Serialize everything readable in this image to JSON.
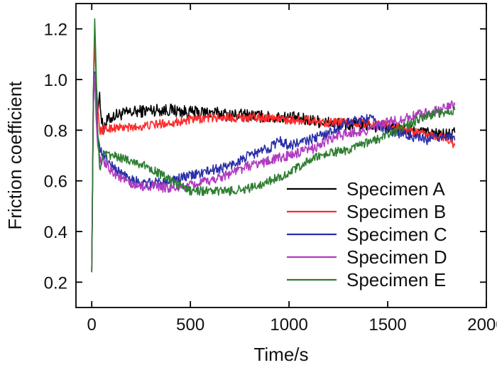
{
  "chart_data": {
    "type": "line",
    "title": "",
    "xlabel": "Time/s",
    "ylabel": "Friction coefficient",
    "xlim": [
      -80,
      2000
    ],
    "ylim": [
      0.1,
      1.3
    ],
    "xticks": [
      0,
      500,
      1000,
      1500,
      2000
    ],
    "yticks": [
      0.2,
      0.4,
      0.6,
      0.8,
      1.0,
      1.2
    ],
    "xtick_labels": [
      "0",
      "500",
      "1000",
      "1500",
      "2000"
    ],
    "ytick_labels": [
      "0.2",
      "0.4",
      "0.6",
      "0.8",
      "1.0",
      "1.2"
    ],
    "grid": false,
    "legend_position": "lower-right",
    "series": [
      {
        "name": "Specimen A",
        "color": "#000000",
        "noise": 0.025,
        "x": [
          0,
          8,
          15,
          22,
          30,
          40,
          50,
          60,
          80,
          120,
          200,
          300,
          400,
          500,
          600,
          700,
          800,
          900,
          1000,
          1100,
          1200,
          1300,
          1400,
          1500,
          1600,
          1700,
          1800,
          1840
        ],
        "y": [
          0.24,
          0.9,
          1.02,
          0.93,
          0.86,
          0.95,
          0.83,
          0.81,
          0.84,
          0.86,
          0.87,
          0.88,
          0.88,
          0.87,
          0.87,
          0.86,
          0.86,
          0.85,
          0.85,
          0.84,
          0.83,
          0.82,
          0.82,
          0.81,
          0.8,
          0.79,
          0.78,
          0.79
        ]
      },
      {
        "name": "Specimen B",
        "color": "#ff2a2a",
        "noise": 0.018,
        "x": [
          0,
          8,
          15,
          22,
          30,
          40,
          60,
          100,
          200,
          300,
          400,
          500,
          600,
          700,
          800,
          900,
          1000,
          1100,
          1200,
          1300,
          1400,
          1500,
          1600,
          1700,
          1800,
          1840
        ],
        "y": [
          0.24,
          0.95,
          1.15,
          1.0,
          0.9,
          0.8,
          0.8,
          0.81,
          0.81,
          0.82,
          0.83,
          0.84,
          0.85,
          0.85,
          0.85,
          0.85,
          0.84,
          0.84,
          0.83,
          0.83,
          0.83,
          0.82,
          0.8,
          0.78,
          0.77,
          0.74
        ]
      },
      {
        "name": "Specimen C",
        "color": "#2b2fa8",
        "noise": 0.02,
        "x": [
          0,
          8,
          15,
          22,
          30,
          45,
          60,
          100,
          150,
          200,
          250,
          300,
          400,
          500,
          600,
          700,
          800,
          900,
          950,
          1000,
          1100,
          1200,
          1300,
          1400,
          1500,
          1600,
          1700,
          1800,
          1840
        ],
        "y": [
          0.24,
          0.95,
          1.03,
          0.88,
          0.78,
          0.72,
          0.7,
          0.66,
          0.63,
          0.61,
          0.59,
          0.59,
          0.6,
          0.62,
          0.64,
          0.66,
          0.7,
          0.73,
          0.76,
          0.74,
          0.76,
          0.79,
          0.83,
          0.85,
          0.8,
          0.78,
          0.76,
          0.78,
          0.76
        ]
      },
      {
        "name": "Specimen D",
        "color": "#b03bc0",
        "noise": 0.02,
        "x": [
          0,
          8,
          15,
          22,
          30,
          45,
          60,
          100,
          150,
          200,
          300,
          400,
          500,
          600,
          700,
          800,
          900,
          1000,
          1100,
          1200,
          1300,
          1400,
          1500,
          1600,
          1700,
          1800,
          1840
        ],
        "y": [
          0.24,
          0.9,
          1.02,
          0.85,
          0.74,
          0.68,
          0.67,
          0.64,
          0.61,
          0.58,
          0.58,
          0.57,
          0.58,
          0.6,
          0.63,
          0.66,
          0.68,
          0.7,
          0.72,
          0.76,
          0.79,
          0.8,
          0.83,
          0.85,
          0.87,
          0.89,
          0.9
        ]
      },
      {
        "name": "Specimen E",
        "color": "#2e7d32",
        "noise": 0.018,
        "x": [
          0,
          8,
          15,
          22,
          30,
          40,
          50,
          60,
          100,
          150,
          200,
          300,
          400,
          500,
          600,
          700,
          800,
          900,
          1000,
          1100,
          1200,
          1300,
          1400,
          1500,
          1600,
          1700,
          1800,
          1840
        ],
        "y": [
          0.24,
          0.95,
          1.24,
          1.05,
          0.8,
          0.65,
          0.68,
          0.7,
          0.7,
          0.69,
          0.68,
          0.65,
          0.6,
          0.56,
          0.56,
          0.56,
          0.57,
          0.6,
          0.63,
          0.68,
          0.71,
          0.72,
          0.75,
          0.78,
          0.82,
          0.86,
          0.87,
          0.88
        ]
      }
    ]
  }
}
